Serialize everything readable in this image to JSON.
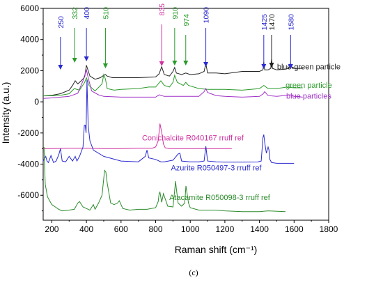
{
  "chart_data": {
    "type": "line",
    "panel_label": "(c)",
    "xlabel": "Raman shift (cm⁻¹)",
    "ylabel": "Intensity (a.u.)",
    "xlim": [
      150,
      1800
    ],
    "ylim": [
      -7600,
      6000
    ],
    "xticks": [
      200,
      400,
      600,
      800,
      1000,
      1200,
      1400,
      1600,
      1800
    ],
    "yticks": [
      6000,
      4000,
      2000,
      0,
      -2000,
      -4000,
      -6000
    ],
    "grid": false,
    "series": [
      {
        "name": "blue-green particle",
        "color": "#222222",
        "x": [
          150,
          200,
          250,
          300,
          320,
          335,
          350,
          370,
          390,
          400,
          420,
          450,
          480,
          500,
          510,
          520,
          550,
          600,
          700,
          800,
          820,
          835,
          850,
          880,
          900,
          910,
          920,
          950,
          974,
          1000,
          1050,
          1080,
          1090,
          1100,
          1150,
          1200,
          1300,
          1400,
          1420,
          1425,
          1430,
          1450,
          1465,
          1470,
          1475,
          1500,
          1550,
          1570,
          1580,
          1590,
          1650
        ],
        "y": [
          380,
          420,
          520,
          750,
          1050,
          1350,
          1150,
          1350,
          1600,
          2350,
          1650,
          1450,
          1550,
          1700,
          1750,
          1650,
          1550,
          1550,
          1550,
          1600,
          1800,
          2250,
          1750,
          1650,
          1950,
          2200,
          1850,
          1750,
          1850,
          1750,
          1800,
          1950,
          2450,
          1850,
          1850,
          1800,
          1950,
          1950,
          2050,
          2550,
          2050,
          2050,
          2150,
          2750,
          2150,
          2050,
          2100,
          2150,
          2450,
          2150,
          2150
        ],
        "label": "blue-green particle"
      },
      {
        "name": "green particle",
        "color": "#2a9a2a",
        "x": [
          150,
          200,
          250,
          300,
          330,
          360,
          390,
          400,
          415,
          450,
          490,
          500,
          510,
          520,
          560,
          600,
          700,
          760,
          800,
          830,
          850,
          880,
          900,
          910,
          925,
          960,
          974,
          990,
          1050,
          1100,
          1200,
          1300,
          1400,
          1425,
          1450,
          1500,
          1560,
          1600,
          1650
        ],
        "y": [
          380,
          390,
          420,
          520,
          850,
          750,
          1250,
          1550,
          1050,
          700,
          1150,
          1750,
          1450,
          850,
          750,
          800,
          850,
          950,
          950,
          1350,
          1050,
          950,
          1250,
          1700,
          1250,
          1050,
          1250,
          1050,
          850,
          800,
          800,
          750,
          850,
          1050,
          850,
          850,
          950,
          900,
          900
        ],
        "label": "green particle"
      },
      {
        "name": "blue particles",
        "color": "#a030c8",
        "x": [
          150,
          200,
          250,
          300,
          350,
          380,
          395,
          400,
          410,
          430,
          470,
          500,
          600,
          700,
          800,
          820,
          850,
          900,
          1000,
          1050,
          1080,
          1090,
          1100,
          1150,
          1200,
          1300,
          1400,
          1420,
          1430,
          1450,
          1500,
          1580,
          1600,
          1650
        ],
        "y": [
          220,
          250,
          300,
          350,
          550,
          1350,
          1900,
          2050,
          1550,
          700,
          450,
          350,
          300,
          300,
          300,
          450,
          350,
          350,
          350,
          350,
          650,
          850,
          600,
          400,
          350,
          300,
          350,
          500,
          650,
          400,
          350,
          450,
          350,
          300
        ],
        "label": "blue particles"
      },
      {
        "name": "Conichalcite R040167 rruff ref",
        "color": "#d030a0",
        "x": [
          150,
          200,
          300,
          400,
          500,
          600,
          700,
          780,
          800,
          815,
          825,
          835,
          845,
          855,
          880,
          950,
          1050,
          1150,
          1240
        ],
        "y": [
          -3000,
          -3000,
          -2980,
          -2980,
          -3000,
          -3000,
          -2980,
          -2980,
          -2900,
          -2500,
          -1400,
          -1950,
          -2700,
          -2950,
          -3000,
          -3000,
          -3000,
          -3000,
          -3000
        ],
        "label": "Conichalcite R040167 rruff ref"
      },
      {
        "name": "Azurite R050497-3 rruff ref",
        "color": "#2a2ad0",
        "x": [
          150,
          165,
          172,
          180,
          195,
          210,
          225,
          240,
          250,
          260,
          280,
          300,
          320,
          335,
          345,
          360,
          380,
          388,
          393,
          398,
          403,
          410,
          420,
          440,
          500,
          600,
          700,
          740,
          750,
          760,
          800,
          830,
          850,
          900,
          930,
          940,
          950,
          1000,
          1050,
          1080,
          1090,
          1100,
          1150,
          1200,
          1300,
          1390,
          1410,
          1420,
          1425,
          1430,
          1440,
          1450,
          1455,
          1460,
          1470,
          1500,
          1550,
          1600
        ],
        "y": [
          -3800,
          -3500,
          -3800,
          -3900,
          -3450,
          -3900,
          -3800,
          -3400,
          -3000,
          -3800,
          -3850,
          -3500,
          -3800,
          -3500,
          -3800,
          -3500,
          -2900,
          -1500,
          -1500,
          -2000,
          1400,
          -1500,
          -2500,
          -3100,
          -3500,
          -3800,
          -3850,
          -3500,
          -3100,
          -3600,
          -3700,
          -3850,
          -3850,
          -3750,
          -3350,
          -3300,
          -3800,
          -3850,
          -3850,
          -3800,
          -2850,
          -3800,
          -3850,
          -3870,
          -3870,
          -3860,
          -3800,
          -2300,
          -2100,
          -2600,
          -3300,
          -2900,
          -3100,
          -3700,
          -3900,
          -3950,
          -3950,
          -3950
        ],
        "label": "Azurite R050497-3 rruff ref"
      },
      {
        "name": "Atacamite R050098-3 rruff ref",
        "color": "#2a8a2a",
        "x": [
          155,
          158,
          162,
          175,
          200,
          220,
          240,
          250,
          260,
          300,
          330,
          350,
          360,
          380,
          420,
          440,
          450,
          470,
          490,
          505,
          512,
          520,
          540,
          560,
          580,
          590,
          610,
          650,
          700,
          750,
          800,
          815,
          820,
          825,
          835,
          845,
          870,
          900,
          910,
          915,
          920,
          930,
          950,
          968,
          975,
          990,
          1000,
          1050,
          1100,
          1150,
          1200,
          1300,
          1400,
          1450,
          1550
        ],
        "y": [
          -2900,
          -4100,
          -5300,
          -6100,
          -6600,
          -6750,
          -6900,
          -6950,
          -7000,
          -6950,
          -6900,
          -6500,
          -6400,
          -6750,
          -6950,
          -6600,
          -6900,
          -6500,
          -6000,
          -4400,
          -4500,
          -5200,
          -6500,
          -6600,
          -6500,
          -6350,
          -6850,
          -6950,
          -6900,
          -6900,
          -6800,
          -6400,
          -5900,
          -5800,
          -6450,
          -5900,
          -6700,
          -6750,
          -5700,
          -5100,
          -5600,
          -6500,
          -6700,
          -6500,
          -5400,
          -6500,
          -6800,
          -6950,
          -6950,
          -6950,
          -7000,
          -7050,
          -7050,
          -7000,
          -7050
        ],
        "label": "Atacamite R050098-3 rruff ref"
      }
    ],
    "annotations": [
      {
        "text": "250",
        "x": 250,
        "color": "#2a2ad0"
      },
      {
        "text": "332",
        "x": 332,
        "color": "#2a9a2a"
      },
      {
        "text": "400",
        "x": 400,
        "color": "#2a2ad0"
      },
      {
        "text": "510",
        "x": 510,
        "color": "#2a9a2a"
      },
      {
        "text": "835",
        "x": 835,
        "color": "#d030a0"
      },
      {
        "text": "910",
        "x": 910,
        "color": "#2a9a2a"
      },
      {
        "text": "974",
        "x": 974,
        "color": "#2a9a2a"
      },
      {
        "text": "1090",
        "x": 1090,
        "color": "#2a2ad0"
      },
      {
        "text": "1425",
        "x": 1425,
        "color": "#2a2ad0"
      },
      {
        "text": "1470",
        "x": 1470,
        "color": "#222222"
      },
      {
        "text": "1580",
        "x": 1580,
        "color": "#2a2ad0"
      }
    ]
  }
}
